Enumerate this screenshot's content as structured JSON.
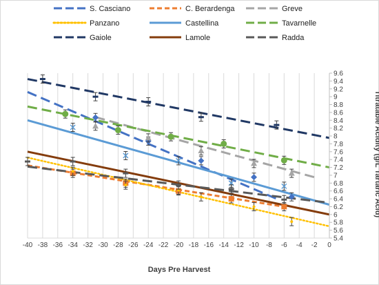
{
  "chart_data": {
    "type": "line",
    "title": "",
    "xlabel": "Days Pre Harvest",
    "ylabel": "Titratable Acidity  (g/L Tartaric Acid)",
    "xlim": [
      -40,
      0
    ],
    "ylim": [
      5.4,
      9.6
    ],
    "x_ticks": [
      "-40",
      "-38",
      "-36",
      "-34",
      "-32",
      "-30",
      "-28",
      "-26",
      "-24",
      "-22",
      "-20",
      "-18",
      "-16",
      "-14",
      "-12",
      "-10",
      "-8",
      "-6",
      "-4",
      "-2",
      "0"
    ],
    "y_ticks": [
      "5.4",
      "5.6",
      "5.8",
      "6",
      "6.2",
      "6.4",
      "6.6",
      "6.8",
      "7",
      "7.2",
      "7.4",
      "7.6",
      "7.8",
      "8",
      "8.2",
      "8.4",
      "8.6",
      "8.8",
      "9",
      "9.2",
      "9.4",
      "9.6"
    ],
    "grid": "vertical",
    "legend_position": "top",
    "series": [
      {
        "name": "S. Casciano",
        "color": "#4472C4",
        "dash": "long-dash",
        "marker": "diamond",
        "trend": [
          [
            -40,
            9.12
          ],
          [
            -7,
            6.4
          ]
        ],
        "points": [
          [
            -31,
            8.47
          ],
          [
            -24,
            7.87
          ],
          [
            -17,
            7.37
          ],
          [
            -10,
            6.95
          ],
          [
            -5,
            6.45
          ]
        ]
      },
      {
        "name": "C. Berardenga",
        "color": "#ED7D31",
        "dash": "short-dash",
        "marker": "square",
        "trend": [
          [
            -40,
            7.25
          ],
          [
            -6,
            6.2
          ]
        ],
        "points": [
          [
            -34,
            7.05
          ],
          [
            -27,
            6.8
          ],
          [
            -20,
            6.6
          ],
          [
            -13,
            6.4
          ],
          [
            -6,
            6.2
          ]
        ]
      },
      {
        "name": "Greve",
        "color": "#A5A5A5",
        "dash": "long-dash",
        "marker": "triangle",
        "trend": [
          [
            -31,
            8.48
          ],
          [
            -2,
            6.95
          ]
        ],
        "points": [
          [
            -31,
            8.25
          ],
          [
            -24,
            7.95
          ],
          [
            -17,
            7.62
          ],
          [
            -10,
            7.3
          ],
          [
            -5,
            7.05
          ]
        ]
      },
      {
        "name": "Panzano",
        "color": "#FFC000",
        "dash": "dotted",
        "marker": "none",
        "trend": [
          [
            -40,
            7.45
          ],
          [
            0,
            5.7
          ]
        ],
        "points": [
          [
            -34,
            7.1
          ],
          [
            -27,
            6.75
          ],
          [
            -20,
            6.62
          ],
          [
            -17,
            6.45
          ],
          [
            -10,
            6.2
          ],
          [
            -5,
            5.82
          ]
        ]
      },
      {
        "name": "Castellina",
        "color": "#5B9BD5",
        "dash": "solid",
        "marker": "x",
        "trend": [
          [
            -40,
            8.4
          ],
          [
            0,
            6.25
          ]
        ],
        "points": [
          [
            -34,
            8.22
          ],
          [
            -27,
            7.5
          ],
          [
            -20,
            7.37
          ],
          [
            -13,
            6.8
          ],
          [
            -6,
            6.72
          ]
        ]
      },
      {
        "name": "Tavarnelle",
        "color": "#70AD47",
        "dash": "long-dash",
        "marker": "circle",
        "trend": [
          [
            -40,
            8.75
          ],
          [
            0,
            7.2
          ]
        ],
        "points": [
          [
            -35,
            8.56
          ],
          [
            -28,
            8.15
          ],
          [
            -21,
            7.98
          ],
          [
            -14,
            7.8
          ],
          [
            -6,
            7.38
          ]
        ]
      },
      {
        "name": "Gaiole",
        "color": "#203864",
        "dash": "long-dash",
        "marker": "dash",
        "trend": [
          [
            -40,
            9.45
          ],
          [
            0,
            7.95
          ]
        ],
        "points": [
          [
            -38,
            9.45
          ],
          [
            -31,
            9.0
          ],
          [
            -24,
            8.87
          ],
          [
            -17,
            8.48
          ],
          [
            -7,
            8.28
          ]
        ]
      },
      {
        "name": "Lamole",
        "color": "#843C0C",
        "dash": "solid",
        "marker": "none",
        "trend": [
          [
            -40,
            7.6
          ],
          [
            0,
            6.0
          ]
        ],
        "points": []
      },
      {
        "name": "Radda",
        "color": "#595959",
        "dash": "long-dash",
        "marker": "dash",
        "trend": [
          [
            -40,
            7.22
          ],
          [
            0,
            6.3
          ]
        ],
        "points": [
          [
            -40,
            7.35
          ],
          [
            -34,
            7.35
          ],
          [
            -27,
            7.05
          ],
          [
            -20,
            6.75
          ],
          [
            -13,
            6.65
          ],
          [
            -6,
            6.38
          ]
        ]
      }
    ]
  }
}
